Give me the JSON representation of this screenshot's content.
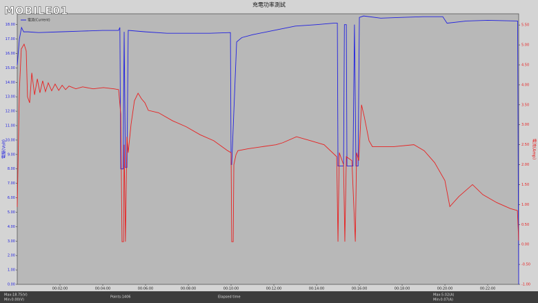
{
  "logo": "MOBILE01",
  "footer": [
    "Max:18.75(V)",
    "Min:0.00(V)",
    "Points:1406",
    "Elapsed time",
    "Max:5.02(A)",
    "Min:0.07(A)"
  ],
  "chart_data": {
    "type": "line",
    "title": "充電功率測試",
    "legend_label": "電流(Current)",
    "ylabel": "電壓(Volt)",
    "y2label": "電流(Amp)",
    "xlim": [
      0,
      23.45
    ],
    "ylim": [
      0,
      18.75
    ],
    "y2lim": [
      -1,
      5.78
    ],
    "grid": false,
    "xticks": [
      {
        "value": 2,
        "label": "00:02:00"
      },
      {
        "value": 4,
        "label": "00:04:00"
      },
      {
        "value": 6,
        "label": "00:06:00"
      },
      {
        "value": 8,
        "label": "00:08:00"
      },
      {
        "value": 10,
        "label": "00:10:00"
      },
      {
        "value": 12,
        "label": "00:12:00"
      },
      {
        "value": 14,
        "label": "00:14:00"
      },
      {
        "value": 16,
        "label": "00:16:00"
      },
      {
        "value": 18,
        "label": "00:18:00"
      },
      {
        "value": 20,
        "label": "00:20:00"
      },
      {
        "value": 22,
        "label": "00:22:00"
      }
    ],
    "yticks": [
      {
        "value": 0,
        "label": "0.00"
      },
      {
        "value": 1,
        "label": "1.00"
      },
      {
        "value": 2,
        "label": "2.00"
      },
      {
        "value": 3,
        "label": "3.00"
      },
      {
        "value": 4,
        "label": "4.00"
      },
      {
        "value": 5,
        "label": "5.00"
      },
      {
        "value": 6,
        "label": "6.00"
      },
      {
        "value": 7,
        "label": "7.00"
      },
      {
        "value": 8,
        "label": "8.00"
      },
      {
        "value": 9,
        "label": "9.00"
      },
      {
        "value": 10,
        "label": "10.00"
      },
      {
        "value": 11,
        "label": "11.00"
      },
      {
        "value": 12,
        "label": "12.00"
      },
      {
        "value": 13,
        "label": "13.00"
      },
      {
        "value": 14,
        "label": "14.00"
      },
      {
        "value": 15,
        "label": "15.00"
      },
      {
        "value": 16,
        "label": "16.00"
      },
      {
        "value": 17,
        "label": "17.00"
      },
      {
        "value": 18,
        "label": "18.00"
      }
    ],
    "y2ticks": [
      {
        "value": -1,
        "label": "-1.00"
      },
      {
        "value": -0.5,
        "label": "-0.50"
      },
      {
        "value": 0,
        "label": "0.00"
      },
      {
        "value": 0.5,
        "label": "0.50"
      },
      {
        "value": 1,
        "label": "1.00"
      },
      {
        "value": 1.5,
        "label": "1.50"
      },
      {
        "value": 2,
        "label": "2.00"
      },
      {
        "value": 2.5,
        "label": "2.50"
      },
      {
        "value": 3,
        "label": "3.00"
      },
      {
        "value": 3.5,
        "label": "3.50"
      },
      {
        "value": 4,
        "label": "4.00"
      },
      {
        "value": 4.5,
        "label": "4.50"
      },
      {
        "value": 5,
        "label": "5.00"
      },
      {
        "value": 5.5,
        "label": "5.50"
      }
    ],
    "series": [
      {
        "color": "#2020e0",
        "axis": "y",
        "x": [
          0,
          0.1,
          0.2,
          0.3,
          0.5,
          1,
          2,
          3,
          4,
          4.74,
          4.8,
          4.84,
          4.95,
          5.0,
          5.06,
          5.13,
          5.19,
          6,
          7,
          8,
          9,
          9.97,
          10.0,
          10.03,
          10.26,
          10.5,
          11,
          12,
          13,
          14,
          14.8,
          14.97,
          15.0,
          15.26,
          15.3,
          15.39,
          15.42,
          15.7,
          15.77,
          15.84,
          15.94,
          16.0,
          16.2,
          17,
          18,
          19,
          19.9,
          20.1,
          21,
          22,
          23.4,
          23.45
        ],
        "values": [
          15.2,
          17.0,
          17.8,
          17.5,
          17.5,
          17.45,
          17.5,
          17.55,
          17.6,
          17.6,
          17.8,
          8.0,
          8.0,
          17.5,
          8.1,
          8.1,
          17.6,
          17.5,
          17.4,
          17.4,
          17.4,
          17.45,
          8.3,
          8.3,
          16.8,
          17.1,
          17.3,
          17.6,
          17.9,
          18.0,
          18.1,
          18.1,
          8.2,
          8.2,
          18.0,
          18.0,
          8.2,
          8.2,
          18.0,
          8.2,
          8.2,
          18.5,
          18.6,
          18.45,
          18.5,
          18.55,
          18.55,
          18.1,
          18.25,
          18.3,
          18.25,
          0
        ]
      },
      {
        "color": "#e82020",
        "axis": "y2",
        "x": [
          0,
          0.1,
          0.19,
          0.32,
          0.42,
          0.48,
          0.58,
          0.68,
          0.81,
          0.94,
          1.06,
          1.19,
          1.32,
          1.45,
          1.61,
          1.77,
          1.94,
          2.1,
          2.26,
          2.42,
          2.74,
          3.06,
          3.55,
          4.03,
          4.52,
          4.74,
          4.84,
          4.9,
          4.97,
          5.0,
          5.06,
          5.13,
          5.19,
          5.32,
          5.48,
          5.65,
          5.81,
          5.97,
          6.13,
          6.61,
          7.26,
          7.9,
          8.55,
          9.19,
          9.84,
          10.0,
          10.03,
          10.1,
          10.13,
          10.23,
          10.32,
          10.81,
          11.45,
          12.1,
          12.42,
          13.06,
          13.71,
          14.35,
          14.94,
          15.0,
          15.06,
          15.26,
          15.32,
          15.39,
          15.65,
          15.81,
          15.87,
          15.97,
          16.1,
          16.23,
          16.45,
          16.61,
          17.58,
          18.55,
          19.03,
          19.52,
          20.0,
          20.23,
          20.65,
          21.29,
          21.77,
          22.42,
          23.06,
          23.39,
          23.45
        ],
        "values": [
          0.94,
          3.87,
          4.9,
          5.02,
          4.85,
          3.7,
          3.55,
          4.3,
          3.75,
          4.15,
          3.8,
          4.1,
          3.83,
          4.05,
          3.85,
          4.02,
          3.86,
          3.99,
          3.88,
          3.97,
          3.9,
          3.95,
          3.9,
          3.93,
          3.9,
          3.88,
          3.27,
          0.07,
          0.07,
          2.5,
          0.07,
          2.7,
          2.3,
          3.0,
          3.6,
          3.79,
          3.65,
          3.55,
          3.36,
          3.3,
          3.1,
          2.95,
          2.75,
          2.6,
          2.35,
          2.3,
          0.07,
          0.07,
          2.0,
          2.25,
          2.35,
          2.4,
          2.45,
          2.5,
          2.55,
          2.7,
          2.6,
          2.5,
          2.2,
          0.07,
          2.3,
          2.0,
          0.07,
          2.2,
          2.1,
          0.07,
          2.3,
          2.1,
          3.5,
          3.2,
          2.6,
          2.45,
          2.45,
          2.5,
          2.35,
          2.05,
          1.6,
          0.95,
          1.2,
          1.5,
          1.25,
          1.05,
          0.9,
          0.85,
          0.1
        ]
      }
    ]
  }
}
